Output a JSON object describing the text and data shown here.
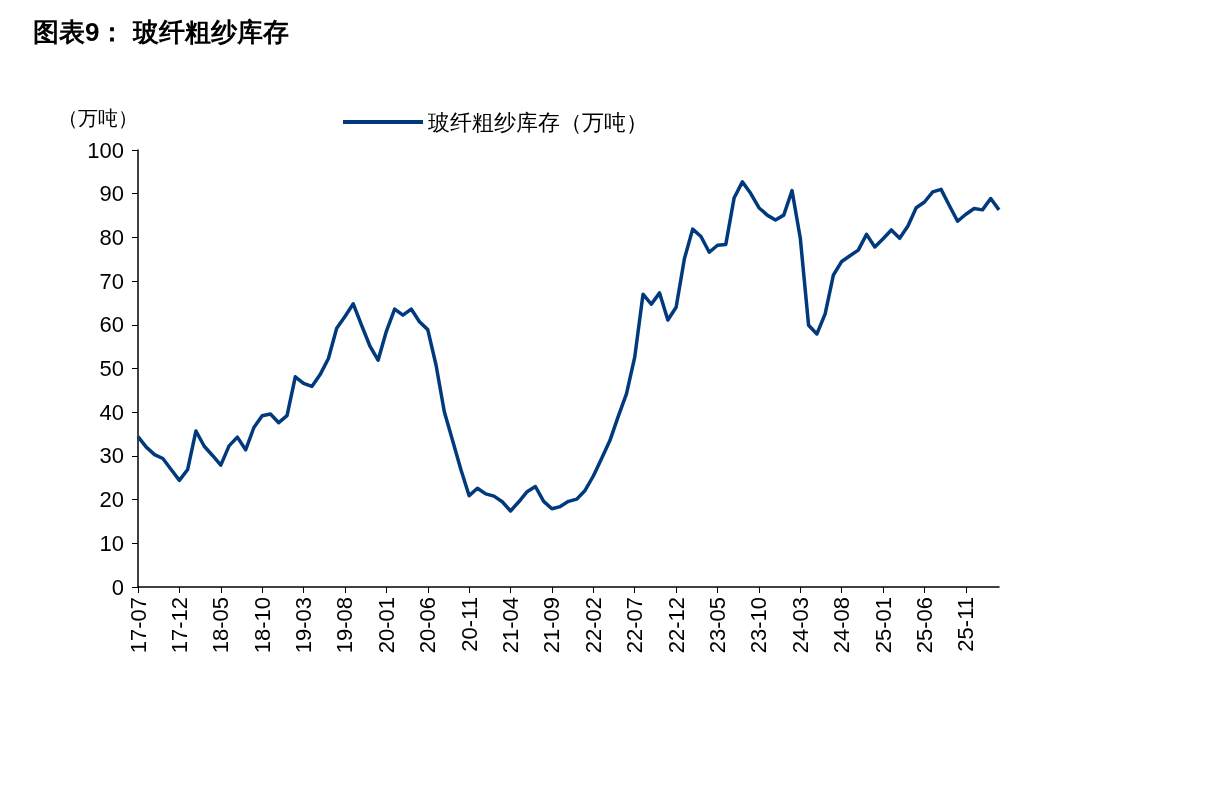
{
  "chart_data": {
    "type": "line",
    "title": "图表9： 玻纤粗纱库存",
    "ylabel": "（万吨）",
    "categories": [
      "17-07",
      null,
      null,
      null,
      null,
      "17-12",
      null,
      null,
      null,
      null,
      "18-05",
      null,
      null,
      null,
      null,
      "18-10",
      null,
      null,
      null,
      null,
      "19-03",
      null,
      null,
      null,
      null,
      "19-08",
      null,
      null,
      null,
      null,
      "20-01",
      null,
      null,
      null,
      null,
      "20-06",
      null,
      null,
      null,
      null,
      "20-11",
      null,
      null,
      null,
      null,
      "21-04",
      null,
      null,
      null,
      null,
      "21-09",
      null,
      null,
      null,
      null,
      "22-02",
      null,
      null,
      null,
      null,
      "22-07",
      null,
      null,
      null,
      null,
      "22-12",
      null,
      null,
      null,
      null,
      "23-05",
      null,
      null,
      null,
      null,
      "23-10",
      null,
      null,
      null,
      null,
      "24-03",
      null,
      null,
      null,
      null,
      "24-08",
      null,
      null,
      null,
      null,
      "25-01",
      null,
      null,
      null,
      null,
      "25-06",
      null,
      null,
      null,
      null,
      "25-11",
      null,
      null,
      null,
      null
    ],
    "series": [
      {
        "name": "玻纤粗纱库存（万吨）",
        "color": "#003a7d",
        "values": [
          34.4,
          32.0,
          30.3,
          29.4,
          26.9,
          24.4,
          26.9,
          35.7,
          32.2,
          30.1,
          27.9,
          32.3,
          34.3,
          31.4,
          36.5,
          39.2,
          39.6,
          37.6,
          39.2,
          48.1,
          46.6,
          45.9,
          48.6,
          52.3,
          59.2,
          61.9,
          64.8,
          59.9,
          55.2,
          51.9,
          58.5,
          63.6,
          62.2,
          63.6,
          60.7,
          58.9,
          50.8,
          40.1,
          33.5,
          26.9,
          20.9,
          22.6,
          21.3,
          20.8,
          19.5,
          17.4,
          19.5,
          21.8,
          23.0,
          19.6,
          17.9,
          18.4,
          19.6,
          20.1,
          22.1,
          25.4,
          29.4,
          33.5,
          39.0,
          44.2,
          52.6,
          67.0,
          64.7,
          67.3,
          61.1,
          64.0,
          75.1,
          81.9,
          80.2,
          76.6,
          78.2,
          78.4,
          89.0,
          92.7,
          90.1,
          86.8,
          85.1,
          84.0,
          85.1,
          90.7,
          79.8,
          59.9,
          57.9,
          62.5,
          71.4,
          74.5,
          75.8,
          77.1,
          80.7,
          77.8,
          79.7,
          81.7,
          79.8,
          82.6,
          86.8,
          88.1,
          90.4,
          91.0,
          87.3,
          83.7,
          85.3,
          86.6,
          86.3,
          88.9,
          86.3
        ]
      }
    ],
    "ylim": [
      0,
      100
    ],
    "yticks": [
      0,
      10,
      20,
      30,
      40,
      50,
      60,
      70,
      80,
      90,
      100
    ],
    "grid": false,
    "legend": "top",
    "marker": "none",
    "line_style": "solid"
  }
}
